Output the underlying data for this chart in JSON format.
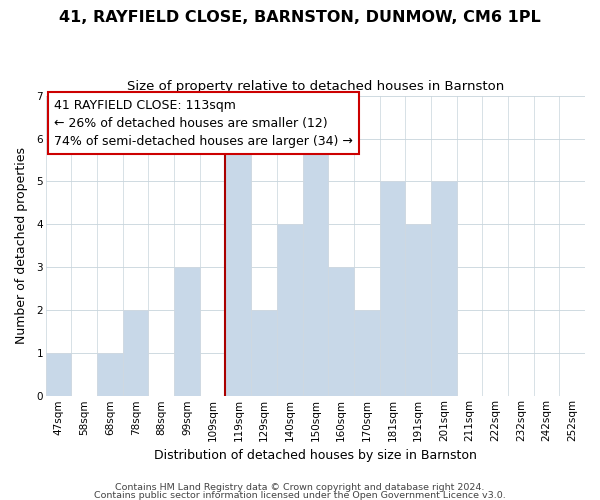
{
  "title": "41, RAYFIELD CLOSE, BARNSTON, DUNMOW, CM6 1PL",
  "subtitle": "Size of property relative to detached houses in Barnston",
  "xlabel": "Distribution of detached houses by size in Barnston",
  "ylabel": "Number of detached properties",
  "bar_color": "#c8d8e8",
  "bar_edge_color": "#d0d8e0",
  "marker_line_color": "#aa0000",
  "categories": [
    "47sqm",
    "58sqm",
    "68sqm",
    "78sqm",
    "88sqm",
    "99sqm",
    "109sqm",
    "119sqm",
    "129sqm",
    "140sqm",
    "150sqm",
    "160sqm",
    "170sqm",
    "181sqm",
    "191sqm",
    "201sqm",
    "211sqm",
    "222sqm",
    "232sqm",
    "242sqm",
    "252sqm"
  ],
  "bin_edges": [
    0,
    1,
    2,
    3,
    4,
    5,
    6,
    7,
    8,
    9,
    10,
    11,
    12,
    13,
    14,
    15,
    16,
    17,
    18,
    19,
    20
  ],
  "values": [
    1,
    0,
    1,
    2,
    0,
    3,
    0,
    6,
    2,
    4,
    6,
    3,
    2,
    5,
    4,
    5,
    0,
    0,
    0,
    0,
    0
  ],
  "marker_bin": 7,
  "ylim": [
    0,
    7
  ],
  "yticks": [
    0,
    1,
    2,
    3,
    4,
    5,
    6,
    7
  ],
  "annotation_title": "41 RAYFIELD CLOSE: 113sqm",
  "annotation_line2": "← 26% of detached houses are smaller (12)",
  "annotation_line3": "74% of semi-detached houses are larger (34) →",
  "footnote1": "Contains HM Land Registry data © Crown copyright and database right 2024.",
  "footnote2": "Contains public sector information licensed under the Open Government Licence v3.0.",
  "background_color": "#ffffff",
  "grid_color": "#c8d4dc",
  "title_fontsize": 11.5,
  "subtitle_fontsize": 9.5,
  "axis_label_fontsize": 9,
  "tick_fontsize": 7.5,
  "annotation_fontsize": 9,
  "footnote_fontsize": 6.8
}
